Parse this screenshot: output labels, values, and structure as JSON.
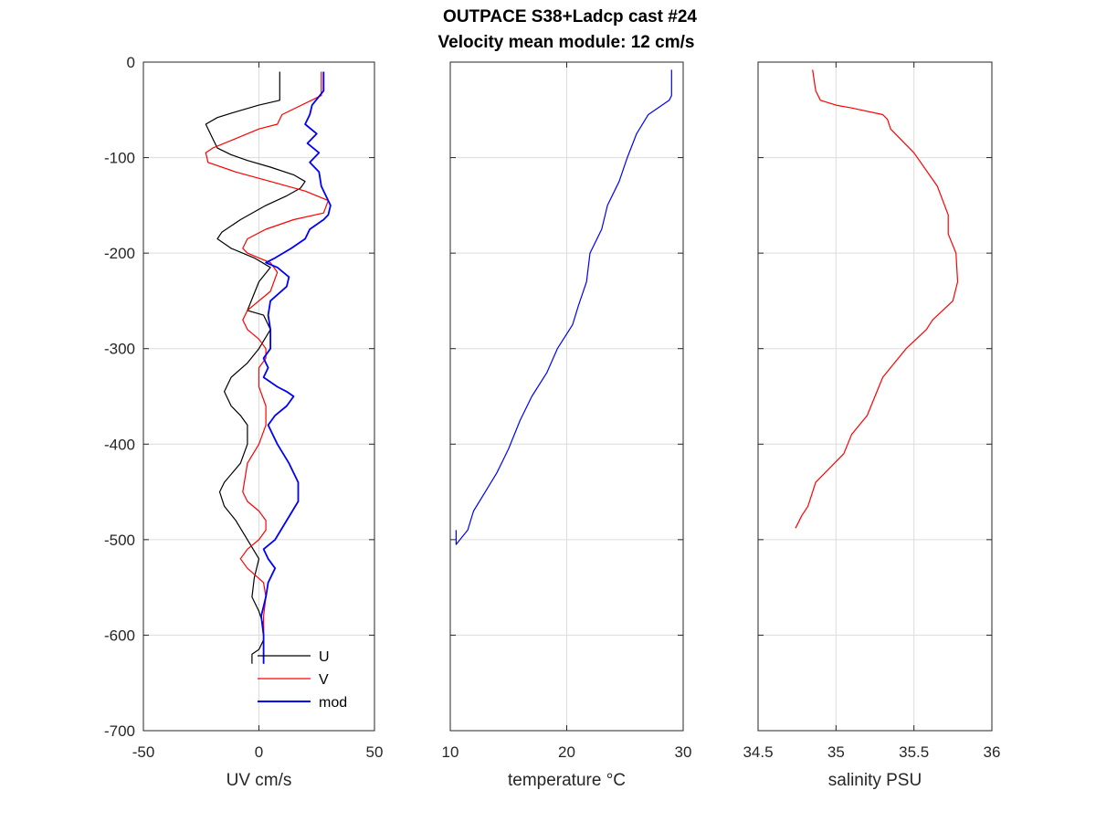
{
  "titles": [
    "OUTPACE S38+Ladcp cast #24",
    "Velocity mean module:  12 cm/s"
  ],
  "chart_data": [
    {
      "type": "line",
      "xlabel": "UV cm/s",
      "ylabel": "",
      "xlim": [
        -50,
        50
      ],
      "ylim": [
        -700,
        0
      ],
      "xticks": [
        -50,
        0,
        50
      ],
      "yticks": [
        0,
        -100,
        -200,
        -300,
        -400,
        -500,
        -600,
        -700
      ],
      "grid": true,
      "legend_position": "bottom-right",
      "series": [
        {
          "name": "U",
          "color": "#000000",
          "x": [
            9,
            9,
            0,
            -10,
            -18,
            -23,
            -20,
            -18,
            -12,
            -5,
            5,
            15,
            20,
            18,
            12,
            3,
            -8,
            -16,
            -18,
            -12,
            -2,
            5,
            0,
            -5,
            2,
            5,
            0,
            -5,
            -12,
            -15,
            -12,
            -8,
            -5,
            -5,
            -8,
            -15,
            -17,
            -15,
            -10,
            -5,
            0,
            -2,
            -3,
            0,
            2,
            2,
            0,
            -3,
            -3
          ],
          "y": [
            -10,
            -40,
            -45,
            -52,
            -58,
            -65,
            -80,
            -90,
            -97,
            -103,
            -110,
            -118,
            -125,
            -132,
            -140,
            -150,
            -165,
            -178,
            -185,
            -195,
            -205,
            -215,
            -230,
            -260,
            -265,
            -280,
            -300,
            -315,
            -330,
            -345,
            -360,
            -370,
            -380,
            -400,
            -420,
            -440,
            -450,
            -465,
            -480,
            -500,
            -520,
            -540,
            -560,
            -575,
            -590,
            -605,
            -615,
            -620,
            -630
          ]
        },
        {
          "name": "V",
          "color": "#ff0000",
          "x": [
            27,
            27,
            10,
            8,
            0,
            -10,
            -20,
            -23,
            -22,
            -10,
            5,
            20,
            30,
            28,
            15,
            3,
            -5,
            -7,
            -5,
            0,
            5,
            8,
            5,
            0,
            -5,
            -7,
            -5,
            0,
            3,
            3,
            0,
            0,
            3,
            3,
            0,
            -5,
            -7,
            -5,
            0,
            3,
            3,
            0,
            -5,
            -8,
            -5,
            2,
            3,
            2,
            2,
            2
          ],
          "y": [
            -10,
            -35,
            -55,
            -65,
            -70,
            -80,
            -90,
            -95,
            -105,
            -115,
            -125,
            -135,
            -145,
            -158,
            -165,
            -175,
            -185,
            -195,
            -200,
            -205,
            -210,
            -220,
            -240,
            -250,
            -260,
            -270,
            -280,
            -290,
            -300,
            -310,
            -320,
            -340,
            -360,
            -380,
            -400,
            -420,
            -450,
            -460,
            -470,
            -480,
            -490,
            -500,
            -510,
            -520,
            -530,
            -545,
            -560,
            -580,
            -600,
            -630
          ]
        },
        {
          "name": "mod",
          "color": "#0000ff",
          "x": [
            28,
            28,
            23,
            22,
            20,
            25,
            21,
            26,
            22,
            26,
            27,
            31,
            30,
            28,
            22,
            20,
            14,
            7,
            3,
            8,
            13,
            12,
            5,
            4,
            5,
            5,
            2,
            4,
            2,
            8,
            12,
            15,
            12,
            7,
            4,
            8,
            13,
            17,
            17,
            12,
            7,
            2,
            4,
            7,
            4,
            3,
            1,
            2,
            2,
            2
          ],
          "y": [
            -10,
            -30,
            -45,
            -55,
            -65,
            -75,
            -85,
            -95,
            -105,
            -115,
            -130,
            -150,
            -160,
            -165,
            -175,
            -185,
            -195,
            -205,
            -210,
            -215,
            -225,
            -235,
            -250,
            -265,
            -280,
            -300,
            -310,
            -320,
            -330,
            -340,
            -345,
            -350,
            -360,
            -370,
            -380,
            -400,
            -420,
            -440,
            -460,
            -480,
            -500,
            -510,
            -520,
            -530,
            -545,
            -560,
            -580,
            -600,
            -615,
            -630
          ]
        }
      ]
    },
    {
      "type": "line",
      "xlabel": "temperature °C",
      "ylabel": "",
      "xlim": [
        10,
        30
      ],
      "ylim": [
        -700,
        0
      ],
      "xticks": [
        10,
        20,
        30
      ],
      "yticks": [
        0,
        -100,
        -200,
        -300,
        -400,
        -500,
        -600,
        -700
      ],
      "grid": true,
      "series": [
        {
          "name": "",
          "color": "#0000ff",
          "x": [
            29,
            29,
            28.8,
            27,
            26,
            25.2,
            24.5,
            23.5,
            23,
            22,
            21.7,
            21,
            20.5,
            19.2,
            18.3,
            17,
            16,
            15,
            14,
            13,
            12,
            11.5,
            10.5,
            10.5
          ],
          "y": [
            -8,
            -35,
            -40,
            -55,
            -75,
            -100,
            -125,
            -150,
            -175,
            -200,
            -230,
            -255,
            -275,
            -300,
            -325,
            -350,
            -375,
            -405,
            -430,
            -450,
            -470,
            -490,
            -505,
            -490
          ]
        }
      ]
    },
    {
      "type": "line",
      "xlabel": "salinity PSU",
      "ylabel": "",
      "xlim": [
        34.5,
        36
      ],
      "ylim": [
        -700,
        0
      ],
      "xticks": [
        34.5,
        35,
        35.5,
        36
      ],
      "xticklabels": [
        "34.5",
        "35",
        "35.5",
        "36"
      ],
      "yticks": [
        0,
        -100,
        -200,
        -300,
        -400,
        -500,
        -600,
        -700
      ],
      "grid": true,
      "series": [
        {
          "name": "",
          "color": "#ff0000",
          "x": [
            34.85,
            34.87,
            34.9,
            35.0,
            35.1,
            35.3,
            35.33,
            35.35,
            35.5,
            35.65,
            35.72,
            35.72,
            35.77,
            35.78,
            35.75,
            35.62,
            35.58,
            35.45,
            35.3,
            35.25,
            35.2,
            35.1,
            35.05,
            34.87,
            34.82,
            34.78,
            34.74
          ],
          "y": [
            -8,
            -30,
            -40,
            -45,
            -48,
            -55,
            -60,
            -70,
            -95,
            -130,
            -160,
            -180,
            -200,
            -230,
            -250,
            -270,
            -280,
            -300,
            -330,
            -350,
            -370,
            -390,
            -410,
            -440,
            -465,
            -475,
            -488
          ]
        }
      ]
    }
  ]
}
